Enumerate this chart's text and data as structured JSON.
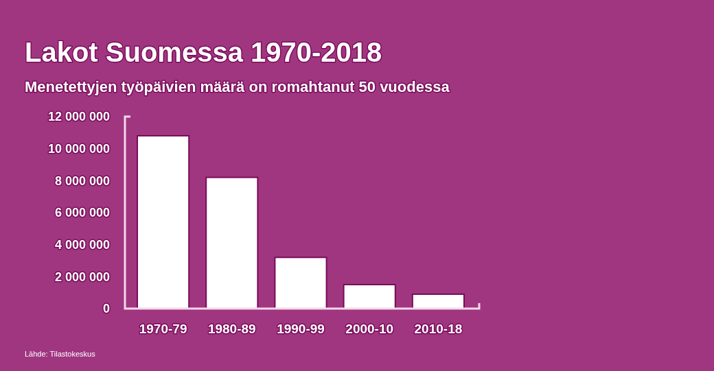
{
  "chart_data": {
    "type": "bar",
    "title": "Lakot Suomessa 1970-2018",
    "subtitle": "Menetettyjen työpäivien määrä on romahtanut 50 vuodessa",
    "categories": [
      "1970-79",
      "1980-89",
      "1990-99",
      "2000-10",
      "2010-18"
    ],
    "values": [
      10800000,
      8200000,
      3200000,
      1500000,
      900000
    ],
    "color": "#ffffff",
    "ylim": [
      0,
      12000000
    ],
    "yticks": [
      {
        "value": 0,
        "label": "0"
      },
      {
        "value": 2000000,
        "label": "2 000 000"
      },
      {
        "value": 4000000,
        "label": "4 000 000"
      },
      {
        "value": 6000000,
        "label": "6 000 000"
      },
      {
        "value": 8000000,
        "label": "8 000 000"
      },
      {
        "value": 10000000,
        "label": "10 000 000"
      },
      {
        "value": 12000000,
        "label": "12 000 000"
      }
    ],
    "annotations": [
      "Lähde: Tilastokeskus"
    ]
  }
}
